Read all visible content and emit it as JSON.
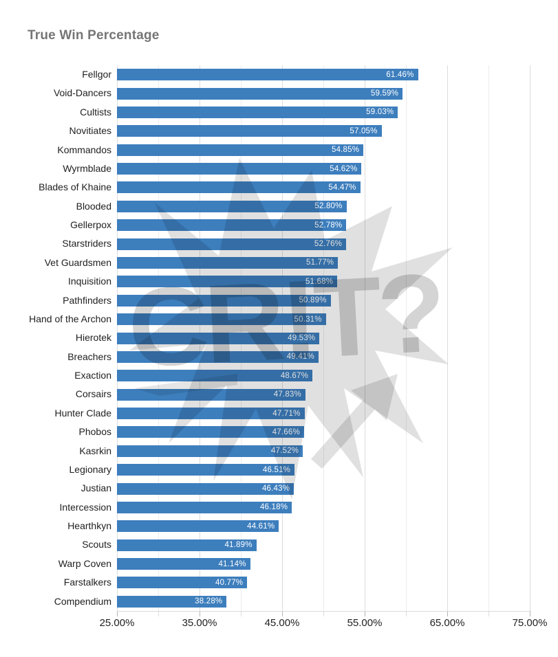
{
  "title": "True Win Percentage",
  "watermark": {
    "text": "CR!T?"
  },
  "colors": {
    "bar": "#3d7ebd",
    "title": "#757575",
    "labels": "#212121",
    "value_labels": "#ffffff",
    "grid_major": "#dcdcdc",
    "grid_minor": "#ececec",
    "watermark": "#000000"
  },
  "chart_data": {
    "type": "bar",
    "orientation": "horizontal",
    "title": "True Win Percentage",
    "xlabel": "",
    "ylabel": "",
    "xlim": [
      25,
      75
    ],
    "grid": true,
    "legend": "none",
    "value_format": "0.00%",
    "categories": [
      "Fellgor",
      "Void-Dancers",
      "Cultists",
      "Novitiates",
      "Kommandos",
      "Wyrmblade",
      "Blades of Khaine",
      "Blooded",
      "Gellerpox",
      "Starstriders",
      "Vet Guardsmen",
      "Inquisition",
      "Pathfinders",
      "Hand of the Archon",
      "Hierotek",
      "Breachers",
      "Exaction",
      "Corsairs",
      "Hunter Clade",
      "Phobos",
      "Kasrkin",
      "Legionary",
      "Justian",
      "Intercession",
      "Hearthkyn",
      "Scouts",
      "Warp Coven",
      "Farstalkers",
      "Compendium"
    ],
    "values": [
      61.46,
      59.59,
      59.03,
      57.05,
      54.85,
      54.62,
      54.47,
      52.8,
      52.78,
      52.76,
      51.77,
      51.68,
      50.89,
      50.31,
      49.53,
      49.41,
      48.67,
      47.83,
      47.71,
      47.66,
      47.52,
      46.51,
      46.43,
      46.18,
      44.61,
      41.89,
      41.14,
      40.77,
      38.28
    ],
    "x_major_ticks": [
      25,
      35,
      45,
      55,
      65,
      75
    ],
    "x_major_tick_labels": [
      "25.00%",
      "35.00%",
      "45.00%",
      "55.00%",
      "65.00%",
      "75.00%"
    ],
    "x_minor_ticks": [
      30,
      40,
      50,
      60,
      70
    ]
  }
}
